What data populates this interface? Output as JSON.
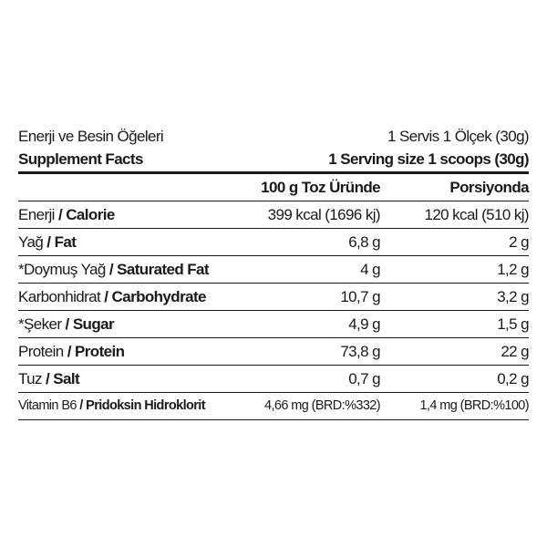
{
  "header": {
    "title_tr": "Enerji ve Besin Öğeleri",
    "serving_tr": "1 Servis 1 Ölçek (30g)",
    "title_en": "Supplement Facts",
    "serving_en": "1 Serving size 1 scoops (30g)"
  },
  "columns": [
    "",
    "100 g Toz Üründe",
    "Porsiyonda"
  ],
  "rows": [
    {
      "tr": "Enerji",
      "en": "Calorie",
      "per100": "399 kcal (1696 kj)",
      "serving": "120 kcal (510 kj)"
    },
    {
      "tr": "Yağ",
      "en": "Fat",
      "per100": "6,8 g",
      "serving": "2 g"
    },
    {
      "tr": "*Doymuş Yağ",
      "en": "Saturated Fat",
      "per100": "4 g",
      "serving": "1,2 g"
    },
    {
      "tr": "Karbonhidrat",
      "en": "Carbohydrate",
      "per100": "10,7 g",
      "serving": "3,2 g"
    },
    {
      "tr": "*Şeker",
      "en": "Sugar",
      "per100": "4,9 g",
      "serving": "1,5 g"
    },
    {
      "tr": "Protein",
      "en": "Protein",
      "per100": "73,8 g",
      "serving": "22 g"
    },
    {
      "tr": "Tuz",
      "en": "Salt",
      "per100": "0,7 g",
      "serving": "0,2 g"
    },
    {
      "tr": "Vitamin B6",
      "en": "Pridoksin Hidroklorit",
      "per100": "4,66 mg (BRD:%332)",
      "serving": "1,4 mg (BRD:%100)"
    }
  ],
  "separator": " / "
}
